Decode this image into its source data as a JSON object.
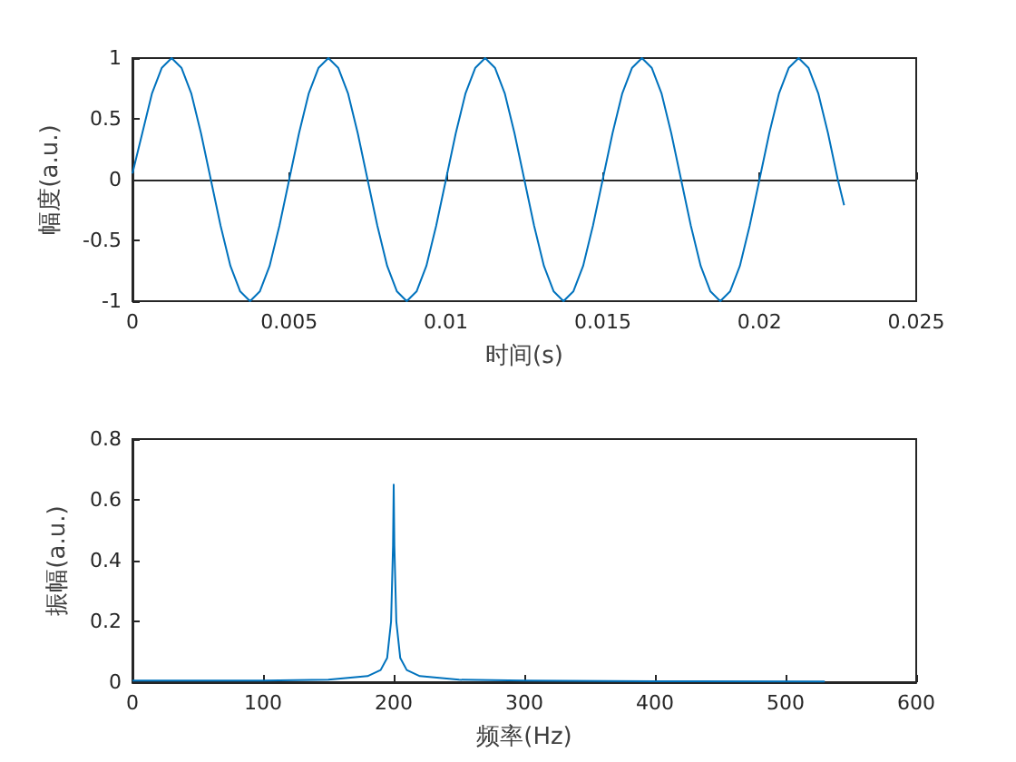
{
  "chart_data": [
    {
      "type": "line",
      "xlabel": "时间(s)",
      "ylabel": "幅度(a.u.)",
      "xlim": [
        0,
        0.025
      ],
      "ylim": [
        -1,
        1
      ],
      "xticks": [
        0,
        0.005,
        0.01,
        0.015,
        0.02,
        0.025
      ],
      "yticks": [
        -1,
        -0.5,
        0,
        0.5,
        1
      ],
      "marker": "none",
      "series": [
        {
          "color": "#0072bd",
          "x": [
            0,
            0.0003125,
            0.000625,
            0.0009375,
            0.00125,
            0.0015625,
            0.001875,
            0.0021875,
            0.0025,
            0.0028125,
            0.003125,
            0.0034375,
            0.00375,
            0.0040625,
            0.004375,
            0.0046875,
            0.005,
            0.0053125,
            0.005625,
            0.0059375,
            0.00625,
            0.0065625,
            0.006875,
            0.0071875,
            0.0075,
            0.0078125,
            0.008125,
            0.0084375,
            0.00875,
            0.0090625,
            0.009375,
            0.0096875,
            0.01,
            0.0103125,
            0.010625,
            0.0109375,
            0.01125,
            0.0115625,
            0.011875,
            0.0121875,
            0.0125,
            0.0128125,
            0.013125,
            0.0134375,
            0.01375,
            0.0140625,
            0.014375,
            0.0146875,
            0.015,
            0.0153125,
            0.015625,
            0.0159375,
            0.01625,
            0.0165625,
            0.016875,
            0.0171875,
            0.0175,
            0.0178125,
            0.018125,
            0.0184375,
            0.01875,
            0.0190625,
            0.019375,
            0.0196875,
            0.02,
            0.0203125,
            0.020625,
            0.0209375,
            0.02125,
            0.0215625,
            0.021875,
            0.0221875,
            0.0225,
            0.0227
          ],
          "values": [
            0.05,
            0.38,
            0.71,
            0.92,
            1,
            0.92,
            0.71,
            0.38,
            0,
            -0.38,
            -0.71,
            -0.92,
            -1,
            -0.92,
            -0.71,
            -0.38,
            0,
            0.38,
            0.71,
            0.92,
            1,
            0.92,
            0.71,
            0.38,
            0,
            -0.38,
            -0.71,
            -0.92,
            -1,
            -0.92,
            -0.71,
            -0.38,
            0,
            0.38,
            0.71,
            0.92,
            1,
            0.92,
            0.71,
            0.38,
            0,
            -0.38,
            -0.71,
            -0.92,
            -1,
            -0.92,
            -0.71,
            -0.38,
            0,
            0.38,
            0.71,
            0.92,
            1,
            0.92,
            0.71,
            0.38,
            0,
            -0.38,
            -0.71,
            -0.92,
            -1,
            -0.92,
            -0.71,
            -0.38,
            0,
            0.38,
            0.71,
            0.92,
            1,
            0.92,
            0.71,
            0.38,
            0,
            -0.21
          ]
        }
      ]
    },
    {
      "type": "line",
      "xlabel": "频率(Hz)",
      "ylabel": "振幅(a.u.)",
      "xlim": [
        0,
        600
      ],
      "ylim": [
        0,
        0.8
      ],
      "xticks": [
        0,
        100,
        200,
        300,
        400,
        500,
        600
      ],
      "yticks": [
        0,
        0.2,
        0.4,
        0.6,
        0.8
      ],
      "marker": "none",
      "series": [
        {
          "color": "#0072bd",
          "x": [
            0,
            100,
            150,
            180,
            190,
            195,
            198,
            199.5,
            200,
            200.5,
            202,
            205,
            210,
            220,
            250,
            300,
            400,
            530
          ],
          "values": [
            0.005,
            0.005,
            0.008,
            0.02,
            0.04,
            0.08,
            0.2,
            0.45,
            0.65,
            0.45,
            0.2,
            0.08,
            0.04,
            0.02,
            0.008,
            0.005,
            0.003,
            0.002
          ]
        }
      ]
    }
  ]
}
